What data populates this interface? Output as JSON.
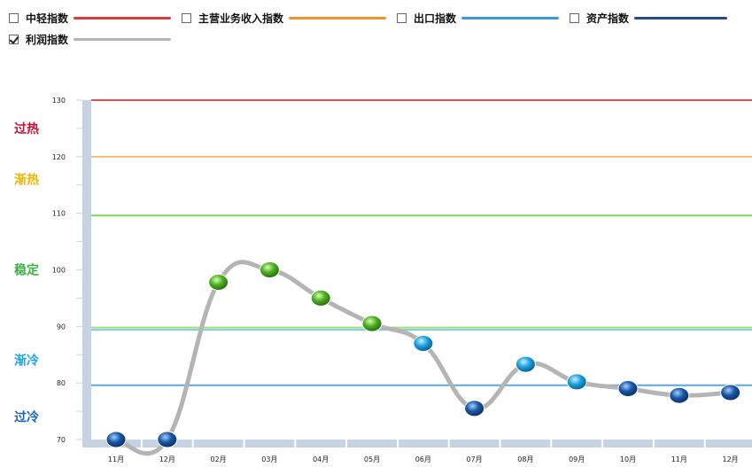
{
  "legend": {
    "items": [
      {
        "label": "中轻指数",
        "color": "#d93a3a",
        "checked": false
      },
      {
        "label": "主营业务收入指数",
        "color": "#f0932b",
        "checked": false
      },
      {
        "label": "出口指数",
        "color": "#3a9ad9",
        "checked": false
      },
      {
        "label": "资产指数",
        "color": "#2b4a8b",
        "checked": false
      },
      {
        "label": "利润指数",
        "color": "#b4b4b4",
        "checked": true
      }
    ]
  },
  "zones": [
    {
      "label": "过热",
      "color": "#c8102e",
      "y": 125
    },
    {
      "label": "渐热",
      "color": "#f0b400",
      "y": 116
    },
    {
      "label": "稳定",
      "color": "#3cb043",
      "y": 100
    },
    {
      "label": "渐冷",
      "color": "#1aa3e8",
      "y": 84
    },
    {
      "label": "过冷",
      "color": "#1565c0",
      "y": 74
    }
  ],
  "reference_lines": [
    {
      "value": 130,
      "color": "#e05050"
    },
    {
      "value": 120,
      "color": "#f0c070"
    },
    {
      "value": 109.6,
      "color": "#7ed957"
    },
    {
      "value": 89.8,
      "color": "#a0e070"
    },
    {
      "value": 89.4,
      "color": "#7ac8e8"
    },
    {
      "value": 79.6,
      "color": "#5aa8e0"
    }
  ],
  "chart_data": {
    "type": "line",
    "categories": [
      "11月",
      "12月",
      "02月",
      "03月",
      "04月",
      "05月",
      "06月",
      "07月",
      "08月",
      "09月",
      "10月",
      "11月",
      "12月"
    ],
    "series": [
      {
        "name": "利润指数",
        "color": "#b4b4b4",
        "values": [
          70,
          70,
          97.8,
          100,
          95,
          90.5,
          87,
          75.5,
          83.3,
          80.2,
          79,
          77.8,
          78.3
        ],
        "marker_colors": [
          "#1a56a8",
          "#1a56a8",
          "#4caf23",
          "#4caf23",
          "#4caf23",
          "#4caf23",
          "#1aa0e0",
          "#1a56a8",
          "#1aa0e0",
          "#1aa0e0",
          "#1a56a8",
          "#1a56a8",
          "#1a56a8"
        ]
      }
    ],
    "yticks": [
      70,
      80,
      90,
      100,
      110,
      120,
      130
    ],
    "ylim": [
      69,
      130
    ],
    "grid": false
  }
}
